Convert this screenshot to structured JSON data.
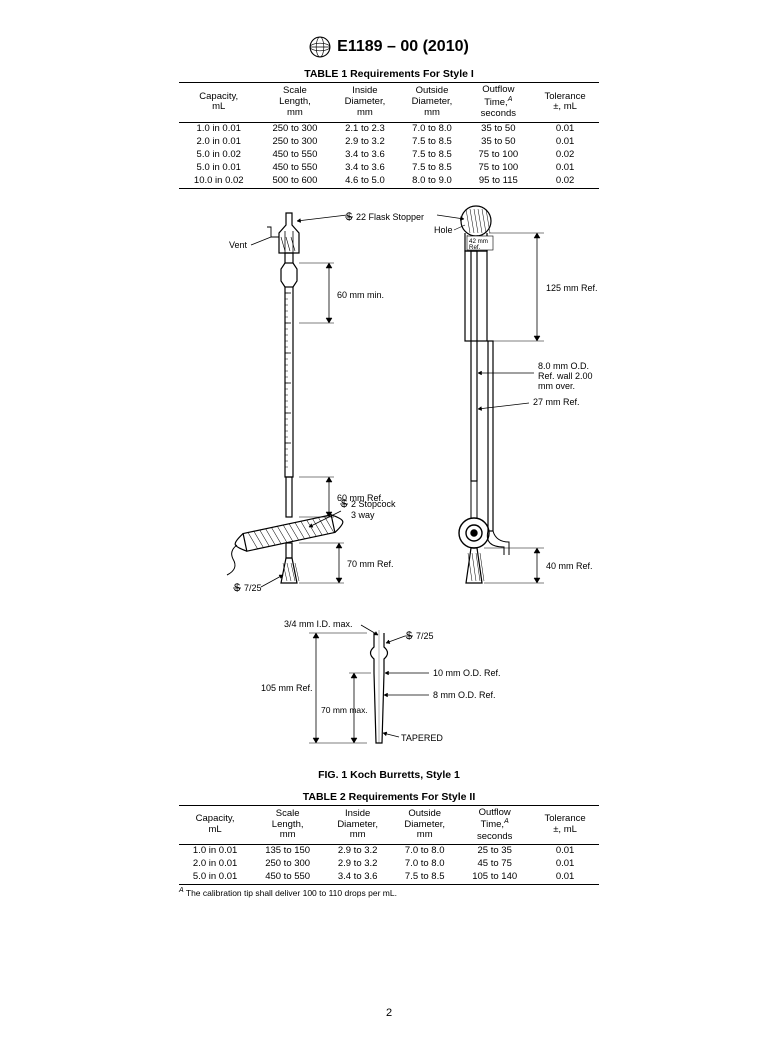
{
  "header": {
    "designation": "E1189 – 00 (2010)"
  },
  "table1": {
    "caption": "TABLE 1 Requirements For Style I",
    "columns": [
      "Capacity,\nmL",
      "Scale\nLength,\nmm",
      "Inside\nDiameter,\nmm",
      "Outside\nDiameter,\nmm",
      "Outflow\nTime,<sup>A</sup>\nseconds",
      "Tolerance\n±, mL"
    ],
    "rows": [
      [
        "1.0 in 0.01",
        "250 to 300",
        "2.1 to 2.3",
        "7.0 to 8.0",
        "35 to 50",
        "0.01"
      ],
      [
        "2.0 in 0.01",
        "250 to 300",
        "2.9 to 3.2",
        "7.5 to 8.5",
        "35 to 50",
        "0.01"
      ],
      [
        "5.0 in 0.02",
        "450 to 550",
        "3.4 to 3.6",
        "7.5 to 8.5",
        "75 to 100",
        "0.02"
      ],
      [
        "5.0 in 0.01",
        "450 to 550",
        "3.4 to 3.6",
        "7.5 to 8.5",
        "75 to 100",
        "0.01"
      ],
      [
        "10.0 in 0.02",
        "500 to 600",
        "4.6 to 5.0",
        "8.0 to 9.0",
        "95 to 115",
        "0.02"
      ]
    ]
  },
  "figure": {
    "caption": "FIG. 1  Koch Burretts, Style 1",
    "labels": {
      "flaskStopper": "22 Flask Stopper",
      "vent": "Vent",
      "hole": "Hole",
      "ref42": "42 mm",
      "refWord": "Ref.",
      "ref125": "125 mm Ref.",
      "min60": "60 mm min.",
      "od8": "8.0 mm O.D.",
      "wall2": "Ref. wall 2.00",
      "mmover": "mm over.",
      "ref27": "27 mm Ref.",
      "ref60": "60 mm Ref.",
      "stop2": "2 Stopcock",
      "way3": "3 way",
      "ref70": "70 mm Ref.",
      "taper725a": "7/25",
      "idmax": "3/4 mm I.D. max.",
      "taper725b": "7/25",
      "ref105": "105 mm Ref.",
      "od10": "10 mm O.D. Ref.",
      "od8b": "8 mm O.D. Ref.",
      "max70": "70 mm max.",
      "tapered": "TAPERED",
      "ref40": "40 mm Ref."
    },
    "style": {
      "stroke": "#000000",
      "stroke_width": 1.2,
      "stroke_width_thin": 0.8,
      "font_size_label": 9,
      "font_size_small": 7,
      "font_family": "Arial, Helvetica, sans-serif",
      "hatch_color": "#000000"
    }
  },
  "table2": {
    "caption": "TABLE 2 Requirements For Style II",
    "columns": [
      "Capacity,\nmL",
      "Scale\nLength,\nmm",
      "Inside\nDiameter,\nmm",
      "Outside\nDiameter,\nmm",
      "Outflow\nTime,<sup>A</sup>\nseconds",
      "Tolerance\n±, mL"
    ],
    "rows": [
      [
        "1.0 in 0.01",
        "135 to 150",
        "2.9 to 3.2",
        "7.0 to 8.0",
        "25 to 35",
        "0.01"
      ],
      [
        "2.0 in 0.01",
        "250 to 300",
        "2.9 to 3.2",
        "7.0 to 8.0",
        "45 to 75",
        "0.01"
      ],
      [
        "5.0 in 0.01",
        "450 to 550",
        "3.4 to 3.6",
        "7.5 to 8.5",
        "105 to 140",
        "0.01"
      ]
    ]
  },
  "footnote": {
    "mark": "A",
    "text": "The calibration tip shall deliver 100 to 110 drops per mL."
  },
  "page_number": "2"
}
